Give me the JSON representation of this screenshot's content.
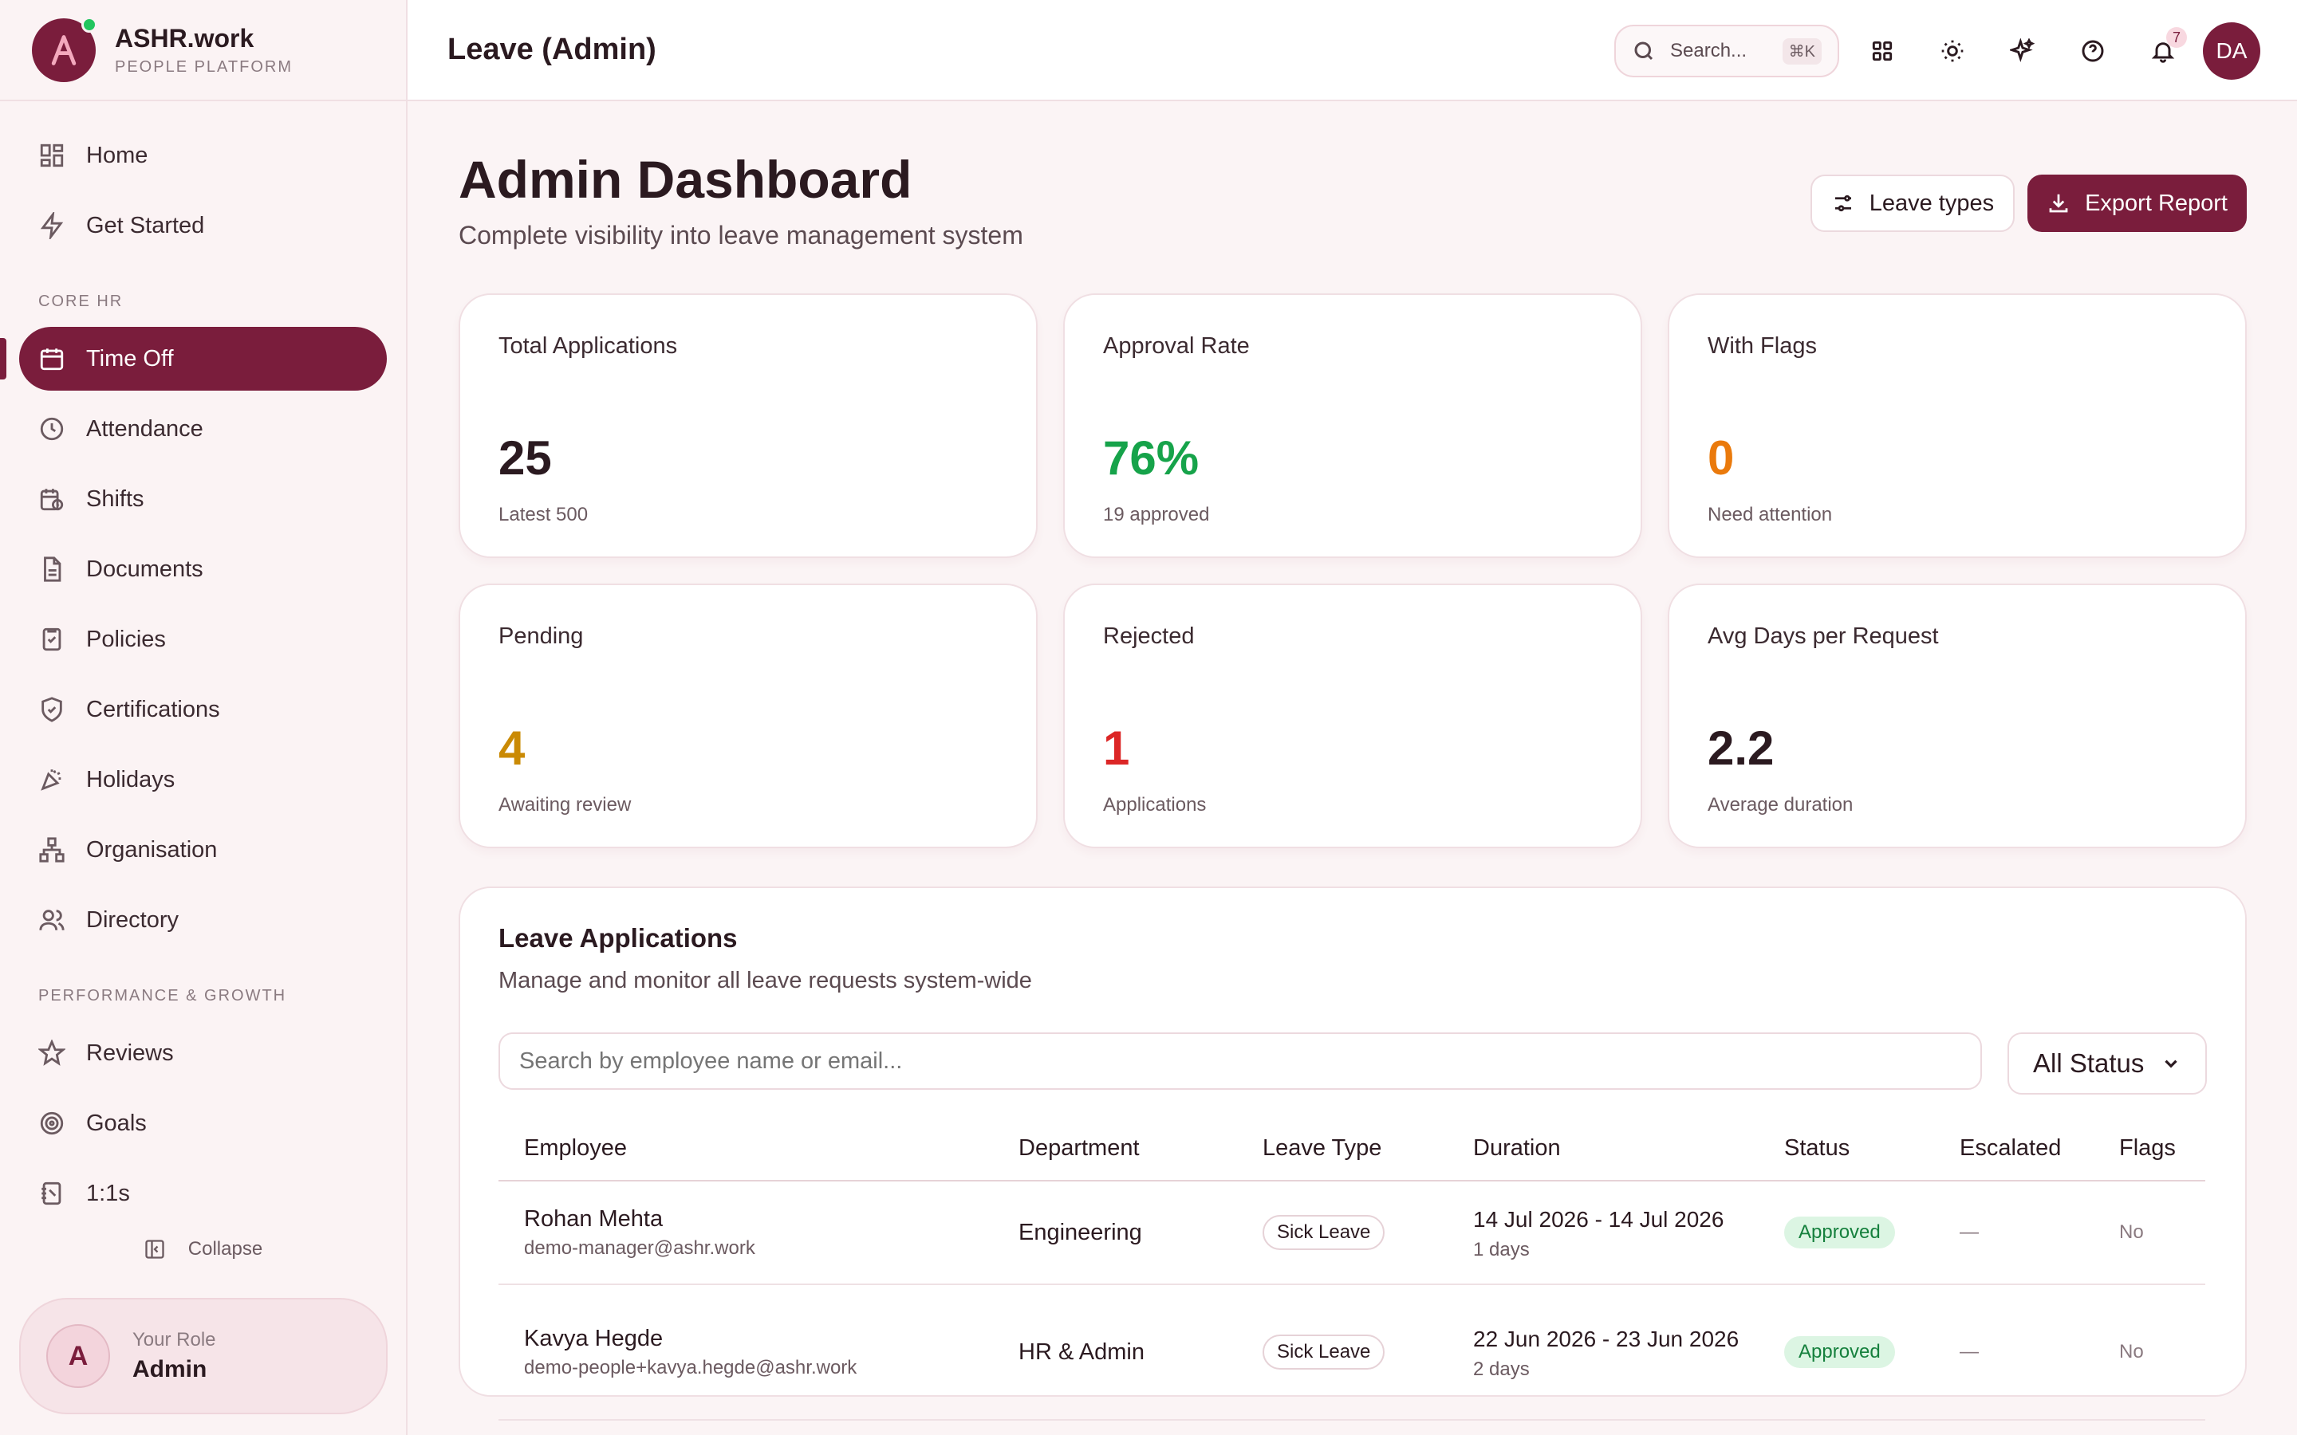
{
  "brand": {
    "name": "ASHR.work",
    "subtitle": "PEOPLE PLATFORM"
  },
  "sidebar": {
    "items_top": [
      {
        "label": "Home",
        "icon": "grid-icon"
      },
      {
        "label": "Get Started",
        "icon": "bolt-icon"
      }
    ],
    "section_core": "CORE HR",
    "items_core": [
      {
        "label": "Time Off",
        "icon": "calendar-icon",
        "active": true
      },
      {
        "label": "Attendance",
        "icon": "clock-icon"
      },
      {
        "label": "Shifts",
        "icon": "calendar-clock-icon"
      },
      {
        "label": "Documents",
        "icon": "document-icon"
      },
      {
        "label": "Policies",
        "icon": "checklist-icon"
      },
      {
        "label": "Certifications",
        "icon": "shield-check-icon"
      },
      {
        "label": "Holidays",
        "icon": "party-icon"
      },
      {
        "label": "Organisation",
        "icon": "org-chart-icon"
      },
      {
        "label": "Directory",
        "icon": "users-icon"
      }
    ],
    "section_perf": "PERFORMANCE & GROWTH",
    "items_perf": [
      {
        "label": "Reviews",
        "icon": "star-icon"
      },
      {
        "label": "Goals",
        "icon": "target-icon"
      },
      {
        "label": "1:1s",
        "icon": "notebook-icon"
      }
    ],
    "collapse_label": "Collapse",
    "role": {
      "initial": "A",
      "label": "Your Role",
      "value": "Admin"
    }
  },
  "topbar": {
    "title": "Leave (Admin)",
    "search_placeholder": "Search...",
    "search_shortcut": "⌘K",
    "notification_count": "7",
    "avatar_initials": "DA"
  },
  "dashboard": {
    "title": "Admin Dashboard",
    "subtitle": "Complete visibility into leave management system",
    "leave_types_label": "Leave types",
    "export_label": "Export Report"
  },
  "stats": [
    {
      "label": "Total Applications",
      "value": "25",
      "note": "Latest 500",
      "color": "#2b1a20"
    },
    {
      "label": "Approval Rate",
      "value": "76%",
      "note": "19 approved",
      "color": "#16a34a"
    },
    {
      "label": "With Flags",
      "value": "0",
      "note": "Need attention",
      "color": "#ea7a0c"
    },
    {
      "label": "Pending",
      "value": "4",
      "note": "Awaiting review",
      "color": "#ca8a04"
    },
    {
      "label": "Rejected",
      "value": "1",
      "note": "Applications",
      "color": "#dc2626"
    },
    {
      "label": "Avg Days per Request",
      "value": "2.2",
      "note": "Average duration",
      "color": "#2b1a20"
    }
  ],
  "applications": {
    "title": "Leave Applications",
    "subtitle": "Manage and monitor all leave requests system-wide",
    "search_placeholder": "Search by employee name or email...",
    "status_filter": "All Status",
    "columns": [
      "Employee",
      "Department",
      "Leave Type",
      "Duration",
      "Status",
      "Escalated",
      "Flags"
    ],
    "rows": [
      {
        "name": "Rohan Mehta",
        "email": "demo-manager@ashr.work",
        "department": "Engineering",
        "leave_type": "Sick Leave",
        "dates": "14 Jul 2026 - 14 Jul 2026",
        "days": "1 days",
        "status": "Approved",
        "escalated": "—",
        "flags": "No"
      },
      {
        "name": "Kavya Hegde",
        "email": "demo-people+kavya.hegde@ashr.work",
        "department": "HR & Admin",
        "leave_type": "Sick Leave",
        "dates": "22 Jun 2026 - 23 Jun 2026",
        "days": "2 days",
        "status": "Approved",
        "escalated": "—",
        "flags": "No"
      }
    ]
  }
}
